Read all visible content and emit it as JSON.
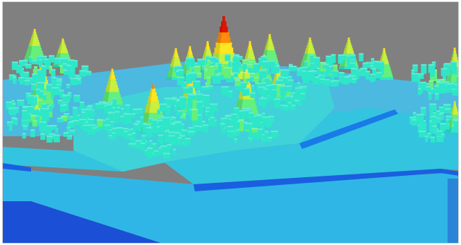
{
  "scene": {
    "background_color": "#808080",
    "colormap": [
      "#0019ff",
      "#0a8cff",
      "#1ecbe6",
      "#2ee6c8",
      "#64f07a",
      "#c8f03c",
      "#ffe61e",
      "#ff8c0a",
      "#e01400"
    ],
    "ground_top_color": "#36c6e0",
    "ground_side_color": "#0a46d2"
  }
}
